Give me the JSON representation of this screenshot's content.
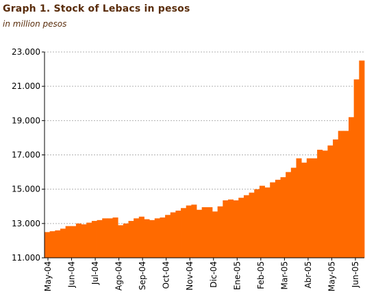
{
  "chart_data": {
    "type": "area",
    "title": "Graph 1. Stock of Lebacs in pesos",
    "subtitle": "in million pesos",
    "xlabel": "",
    "ylabel": "",
    "ylim": [
      11000,
      23000
    ],
    "yticks": [
      11000,
      13000,
      15000,
      17000,
      19000,
      21000,
      23000
    ],
    "ytick_labels": [
      "11.000",
      "13.000",
      "15.000",
      "17.000",
      "19.000",
      "21.000",
      "23.000"
    ],
    "xtick_labels": [
      "May-04",
      "Jun-04",
      "Jul-04",
      "Ago-04",
      "Sep-04",
      "Oct-04",
      "Nov-04",
      "Dic-04",
      "Ene-05",
      "Feb-05",
      "Mar-05",
      "Abr-05",
      "May-05",
      "Jun-05"
    ],
    "grid": true,
    "fill_color": "#ff6a00",
    "grid_color": "#b0b0b0",
    "series": [
      {
        "values": [
          12500,
          12550,
          12600,
          12700,
          12850,
          12850,
          13000,
          12950,
          13050,
          13150,
          13200,
          13300,
          13300,
          13350,
          12900,
          13000,
          13150,
          13300,
          13400,
          13250,
          13200,
          13300,
          13350,
          13500,
          13650,
          13750,
          13900,
          14050,
          14100,
          13800,
          13950,
          13950,
          13700,
          14000,
          14350,
          14400,
          14350,
          14500,
          14650,
          14800,
          15000,
          15200,
          15100,
          15400,
          15550,
          15700,
          16000,
          16250,
          16800,
          16550,
          16800,
          16800,
          17300,
          17250,
          17550,
          17900,
          18400,
          18400,
          19200,
          21400,
          22500
        ]
      }
    ]
  }
}
